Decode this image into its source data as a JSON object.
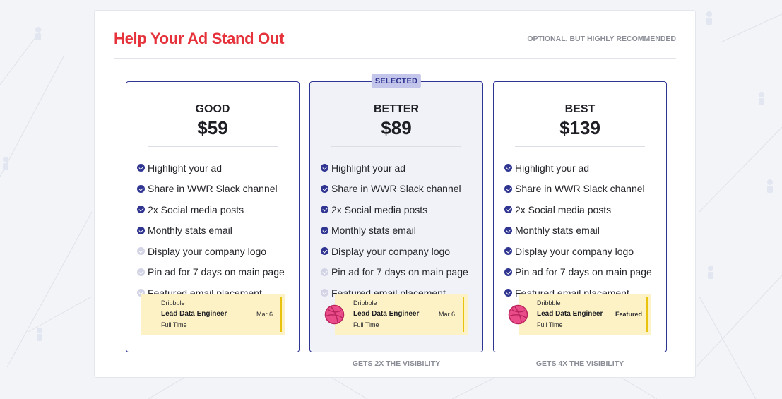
{
  "header": {
    "title": "Help Your Ad Stand Out",
    "note": "OPTIONAL, BUT HIGHLY RECOMMENDED"
  },
  "colors": {
    "accent_red": "#e5323b",
    "accent_navy": "#2f3590",
    "badge_bg": "#c3c6ea",
    "preview_bg": "#fdf2c5",
    "dribbble_pink": "#ea4c89"
  },
  "plans": [
    {
      "name": "GOOD",
      "price": "$59",
      "features": [
        {
          "label": "Highlight your ad",
          "included": true
        },
        {
          "label": "Share in WWR Slack channel",
          "included": true
        },
        {
          "label": "2x Social media posts",
          "included": true
        },
        {
          "label": "Monthly stats email",
          "included": true
        },
        {
          "label": "Display your company logo",
          "included": false
        },
        {
          "label": "Pin ad for 7 days on main page",
          "included": false
        },
        {
          "label": "Featured email placement",
          "included": false
        }
      ],
      "preview": {
        "company": "Dribbble",
        "title": "Lead Data Engineer",
        "type": "Full Time",
        "tag": "Mar 6",
        "logo": null
      }
    },
    {
      "name": "BETTER",
      "price": "$89",
      "badge": "SELECTED",
      "visibility": "GETS 2X THE VISIBILITY",
      "features": [
        {
          "label": "Highlight your ad",
          "included": true
        },
        {
          "label": "Share in WWR Slack channel",
          "included": true
        },
        {
          "label": "2x Social media posts",
          "included": true
        },
        {
          "label": "Monthly stats email",
          "included": true
        },
        {
          "label": "Display your company logo",
          "included": true
        },
        {
          "label": "Pin ad for 7 days on main page",
          "included": false
        },
        {
          "label": "Featured email placement",
          "included": false
        }
      ],
      "preview": {
        "company": "Dribbble",
        "title": "Lead Data Engineer",
        "type": "Full Time",
        "tag": "Mar 6",
        "logo": "dribbble-icon"
      }
    },
    {
      "name": "BEST",
      "price": "$139",
      "visibility": "GETS 4X THE VISIBILITY",
      "features": [
        {
          "label": "Highlight your ad",
          "included": true
        },
        {
          "label": "Share in WWR Slack channel",
          "included": true
        },
        {
          "label": "2x Social media posts",
          "included": true
        },
        {
          "label": "Monthly stats email",
          "included": true
        },
        {
          "label": "Display your company logo",
          "included": true
        },
        {
          "label": "Pin ad for 7 days on main page",
          "included": true
        },
        {
          "label": "Featured email placement",
          "included": true
        }
      ],
      "preview": {
        "company": "Dribbble",
        "title": "Lead Data Engineer",
        "type": "Full Time",
        "tag": "Featured",
        "logo": "dribbble-icon"
      }
    }
  ]
}
